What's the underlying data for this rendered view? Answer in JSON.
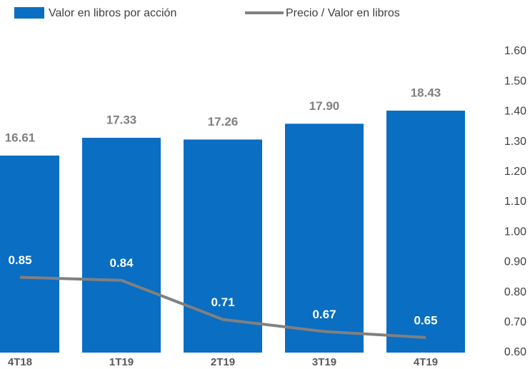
{
  "chart_data": {
    "type": "bar-line",
    "categories": [
      "4T18",
      "1T19",
      "2T19",
      "3T19",
      "4T19"
    ],
    "series": [
      {
        "name": "Valor en libros por acción",
        "color": "#0a6ec2",
        "values": [
          16.61,
          17.33,
          17.26,
          17.9,
          18.43
        ],
        "value_labels": [
          "16.61",
          "17.33",
          "17.26",
          "17.90",
          "18.43"
        ]
      },
      {
        "name": "Precio / Valor en libros",
        "color": "#808080",
        "axis": "y2",
        "values": [
          0.85,
          0.84,
          0.71,
          0.67,
          0.65
        ],
        "value_labels": [
          "0.85",
          "0.84",
          "0.71",
          "0.67",
          "0.65"
        ]
      }
    ],
    "ylim": [
      8.63,
      20.83
    ],
    "y2lim": [
      0.6,
      1.6
    ],
    "y2ticks": [
      {
        "value": 0.6,
        "label": "0.60"
      },
      {
        "value": 0.7,
        "label": "0.70"
      },
      {
        "value": 0.8,
        "label": "0.80"
      },
      {
        "value": 0.9,
        "label": "0.90"
      },
      {
        "value": 1.0,
        "label": "1.00"
      },
      {
        "value": 1.1,
        "label": "1.10"
      },
      {
        "value": 1.2,
        "label": "1.20"
      },
      {
        "value": 1.3,
        "label": "1.30"
      },
      {
        "value": 1.4,
        "label": "1.40"
      },
      {
        "value": 1.5,
        "label": "1.50"
      },
      {
        "value": 1.6,
        "label": "1.60"
      }
    ]
  }
}
